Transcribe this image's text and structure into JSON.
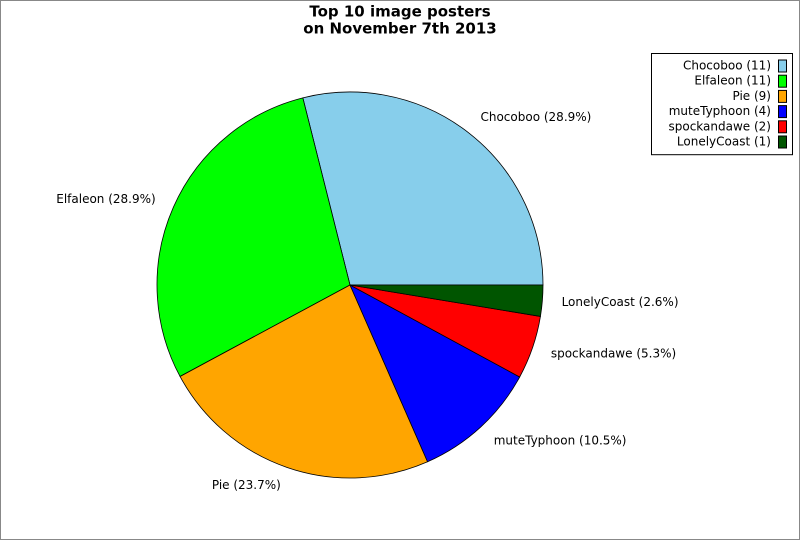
{
  "chart_data": {
    "type": "pie",
    "title": [
      "Top 10 image posters",
      "on November 7th 2013"
    ],
    "values": [
      28.9,
      28.9,
      23.7,
      10.5,
      5.3,
      2.6
    ],
    "value_labels": [
      "Chocoboo (28.9%)",
      "Elfaleon (28.9%)",
      "Pie (23.7%)",
      "muteTyphoon (10.5%)",
      "spockandawe (5.3%)",
      "LonelyCoast (2.6%)"
    ],
    "legend_labels": [
      "Chocoboo (11)",
      "Elfaleon (11)",
      "Pie (9)",
      "muteTyphoon (4)",
      "spockandawe (2)",
      "LonelyCoast (1)"
    ],
    "colors": [
      "#87ceeb",
      "#00ff00",
      "#ffa500",
      "#0000ff",
      "#ff0000",
      "#005500"
    ],
    "legend": "upper right"
  }
}
